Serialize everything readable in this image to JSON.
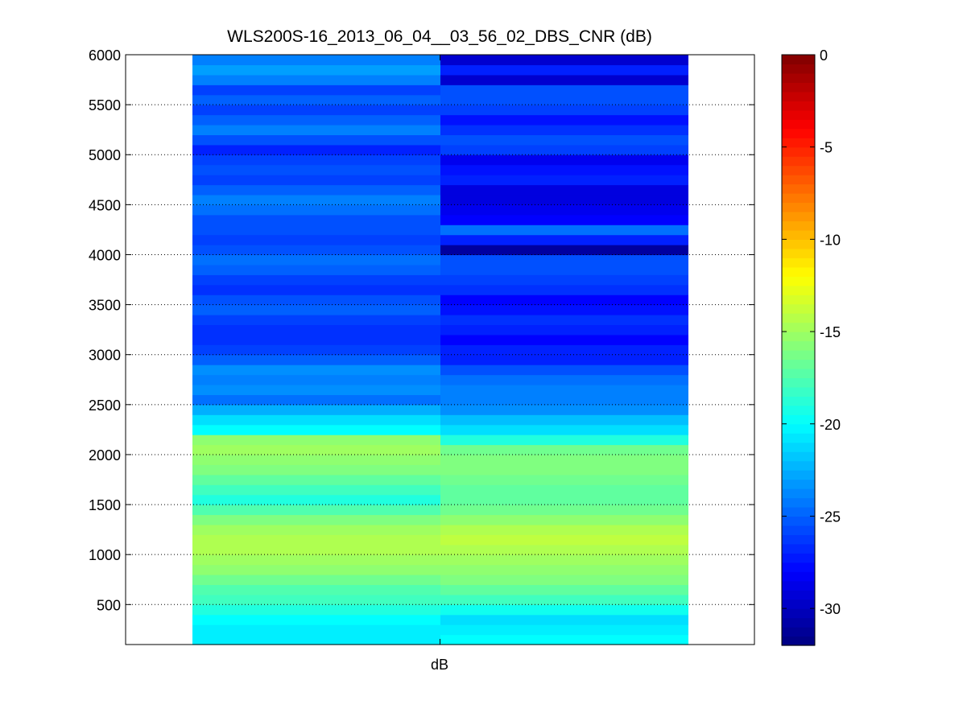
{
  "chart_data": {
    "type": "heatmap",
    "title": "WLS200S-16_2013_06_04__03_56_02_DBS_CNR (dB)",
    "xlabel": "dB",
    "ylabel": "",
    "ylim": [
      100,
      6000
    ],
    "yticks": [
      500,
      1000,
      1500,
      2000,
      2500,
      3000,
      3500,
      4000,
      4500,
      5000,
      5500,
      6000
    ],
    "grid": "dotted horizontal",
    "colormap": "jet",
    "clim": [
      -32,
      0
    ],
    "colorbar_ticks": [
      -30,
      -25,
      -20,
      -15,
      -10,
      -5,
      0
    ],
    "altitude_bins": [
      {
        "from": 100,
        "to": 200
      },
      {
        "from": 200,
        "to": 300
      },
      {
        "from": 300,
        "to": 400
      },
      {
        "from": 400,
        "to": 500
      },
      {
        "from": 500,
        "to": 600
      },
      {
        "from": 600,
        "to": 700
      },
      {
        "from": 700,
        "to": 800
      },
      {
        "from": 800,
        "to": 900
      },
      {
        "from": 900,
        "to": 1000
      },
      {
        "from": 1000,
        "to": 1100
      },
      {
        "from": 1100,
        "to": 1200
      },
      {
        "from": 1200,
        "to": 1300
      },
      {
        "from": 1300,
        "to": 1400
      },
      {
        "from": 1400,
        "to": 1500
      },
      {
        "from": 1500,
        "to": 1600
      },
      {
        "from": 1600,
        "to": 1700
      },
      {
        "from": 1700,
        "to": 1800
      },
      {
        "from": 1800,
        "to": 1900
      },
      {
        "from": 1900,
        "to": 2000
      },
      {
        "from": 2000,
        "to": 2100
      },
      {
        "from": 2100,
        "to": 2200
      },
      {
        "from": 2200,
        "to": 2300
      },
      {
        "from": 2300,
        "to": 2400
      },
      {
        "from": 2400,
        "to": 2500
      },
      {
        "from": 2500,
        "to": 2600
      },
      {
        "from": 2600,
        "to": 2700
      },
      {
        "from": 2700,
        "to": 2800
      },
      {
        "from": 2800,
        "to": 2900
      },
      {
        "from": 2900,
        "to": 3000
      },
      {
        "from": 3000,
        "to": 3100
      },
      {
        "from": 3100,
        "to": 3200
      },
      {
        "from": 3200,
        "to": 3300
      },
      {
        "from": 3300,
        "to": 3400
      },
      {
        "from": 3400,
        "to": 3500
      },
      {
        "from": 3500,
        "to": 3600
      },
      {
        "from": 3600,
        "to": 3700
      },
      {
        "from": 3700,
        "to": 3800
      },
      {
        "from": 3800,
        "to": 3900
      },
      {
        "from": 3900,
        "to": 4000
      },
      {
        "from": 4000,
        "to": 4100
      },
      {
        "from": 4100,
        "to": 4200
      },
      {
        "from": 4200,
        "to": 4300
      },
      {
        "from": 4300,
        "to": 4400
      },
      {
        "from": 4400,
        "to": 4500
      },
      {
        "from": 4500,
        "to": 4600
      },
      {
        "from": 4600,
        "to": 4700
      },
      {
        "from": 4700,
        "to": 4800
      },
      {
        "from": 4800,
        "to": 4900
      },
      {
        "from": 4900,
        "to": 5000
      },
      {
        "from": 5000,
        "to": 5100
      },
      {
        "from": 5100,
        "to": 5200
      },
      {
        "from": 5200,
        "to": 5300
      },
      {
        "from": 5300,
        "to": 5400
      },
      {
        "from": 5400,
        "to": 5500
      },
      {
        "from": 5500,
        "to": 5600
      },
      {
        "from": 5600,
        "to": 5700
      },
      {
        "from": 5700,
        "to": 5800
      },
      {
        "from": 5800,
        "to": 5900
      },
      {
        "from": 5900,
        "to": 6000
      }
    ],
    "columns": [
      {
        "values": [
          -20.5,
          -20.5,
          -20.0,
          -19.0,
          -18.0,
          -17.5,
          -16.5,
          -15.5,
          -15.0,
          -14.5,
          -14.5,
          -15.0,
          -16.0,
          -17.5,
          -19.0,
          -18.0,
          -17.0,
          -16.0,
          -15.5,
          -15.0,
          -15.5,
          -20.0,
          -21.0,
          -22.5,
          -24.5,
          -23.5,
          -24.0,
          -23.5,
          -25.0,
          -26.0,
          -26.5,
          -26.5,
          -26.0,
          -25.0,
          -25.5,
          -26.5,
          -26.0,
          -25.0,
          -24.5,
          -25.5,
          -26.0,
          -25.5,
          -25.5,
          -24.5,
          -24.0,
          -25.0,
          -26.0,
          -25.5,
          -26.0,
          -27.0,
          -25.5,
          -24.0,
          -25.0,
          -26.0,
          -25.0,
          -26.0,
          -24.0,
          -23.0,
          -24.0
        ]
      },
      {
        "values": [
          -20.0,
          -20.5,
          -21.0,
          -19.5,
          -18.0,
          -17.0,
          -16.0,
          -15.5,
          -15.0,
          -14.5,
          -14.0,
          -14.5,
          -15.5,
          -16.5,
          -17.0,
          -17.0,
          -16.5,
          -16.0,
          -16.0,
          -16.5,
          -19.0,
          -21.0,
          -22.0,
          -23.5,
          -24.0,
          -24.0,
          -24.5,
          -25.5,
          -27.0,
          -27.0,
          -28.0,
          -27.0,
          -26.5,
          -27.5,
          -28.0,
          -26.5,
          -26.0,
          -25.5,
          -25.5,
          -31.0,
          -27.0,
          -24.5,
          -28.0,
          -28.5,
          -29.0,
          -29.0,
          -27.0,
          -27.5,
          -28.5,
          -26.0,
          -25.5,
          -26.5,
          -27.5,
          -26.0,
          -25.5,
          -25.5,
          -29.5,
          -27.0,
          -29.5
        ]
      }
    ]
  }
}
